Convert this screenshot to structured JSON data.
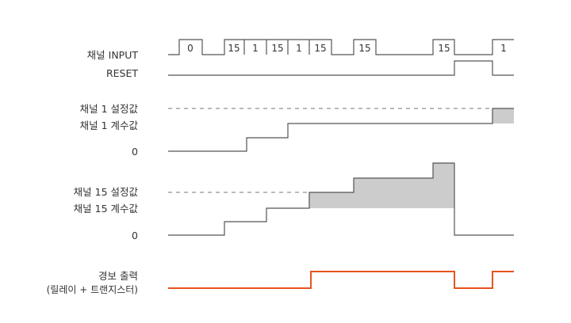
{
  "labels": {
    "input": "채널 INPUT",
    "reset": "RESET",
    "ch1_setpoint": "채널 1 설정값",
    "ch1_count": "채널 1 계수값",
    "ch1_zero": "0",
    "ch15_setpoint": "채널 15 설정값",
    "ch15_count": "채널 15 계수값",
    "ch15_zero": "0",
    "alarm_line1": "경보 출력",
    "alarm_line2": "(릴레이 + 트랜지스터)"
  },
  "input_pulses": [
    "0",
    "15",
    "1",
    "15",
    "1",
    "15",
    "15",
    "15",
    "1"
  ],
  "colors": {
    "line": "#555555",
    "dash": "#777777",
    "fill": "#cccccc",
    "alarm": "#e8531f",
    "text": "#333333"
  }
}
